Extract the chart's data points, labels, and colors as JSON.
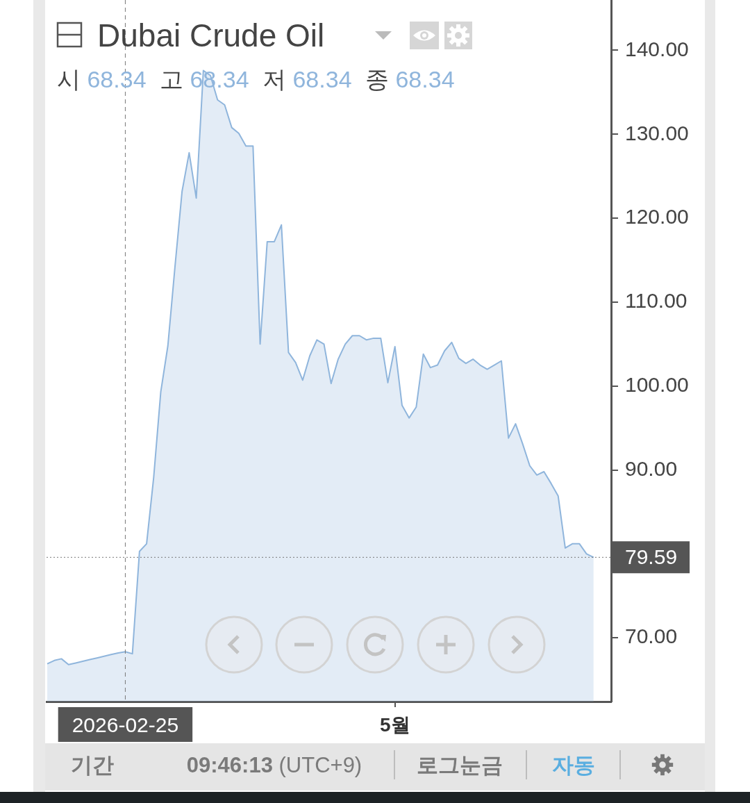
{
  "chart_data": {
    "type": "area",
    "title": "Dubai Crude Oil",
    "subtitle": "시 68.34 고 68.34 저 68.34 종 68.34",
    "categories": [
      null,
      null,
      null,
      null,
      null,
      null,
      null,
      null,
      null,
      null,
      null,
      "2026-02-25",
      null,
      null,
      null,
      null,
      null,
      null,
      null,
      null,
      null,
      null,
      null,
      null,
      null,
      null,
      null,
      null,
      null,
      null,
      null,
      null,
      null,
      null,
      null,
      null,
      null,
      null,
      null,
      null,
      null,
      null,
      null,
      null,
      null,
      null,
      null,
      null,
      null,
      "5월",
      null,
      null,
      null,
      null,
      null,
      null,
      null,
      null,
      null,
      null,
      null,
      null,
      null,
      null,
      null,
      null,
      null,
      null,
      null,
      null,
      null,
      null,
      null,
      null,
      null,
      null,
      null,
      null
    ],
    "series": [
      {
        "color": "#8fb5dc",
        "values": [
          66.9,
          67.3,
          67.5,
          66.8,
          67.0,
          67.2,
          67.4,
          67.6,
          67.8,
          68.0,
          68.2,
          68.34,
          68.1,
          80.3,
          81.2,
          89.1,
          99.3,
          104.8,
          114.2,
          123.2,
          127.8,
          122.4,
          137.6,
          137.0,
          134.1,
          133.5,
          130.8,
          130.1,
          128.6,
          128.6,
          105.0,
          117.2,
          117.2,
          119.2,
          104.0,
          102.8,
          100.7,
          103.6,
          105.5,
          105.0,
          100.3,
          103.2,
          105.0,
          106.0,
          106.0,
          105.5,
          105.7,
          105.7,
          100.4,
          104.7,
          97.7,
          96.2,
          97.5,
          103.8,
          102.2,
          102.5,
          104.2,
          105.2,
          103.3,
          102.7,
          103.2,
          102.5,
          102.0,
          102.5,
          103.0,
          93.8,
          95.5,
          93.1,
          90.5,
          89.4,
          89.8,
          88.4,
          86.9,
          80.7,
          81.2,
          81.2,
          80.0,
          79.59
        ]
      }
    ],
    "ylim": [
      62.4,
      146
    ],
    "yticks": [
      {
        "value": 70,
        "label": "70.00"
      },
      {
        "value": 90,
        "label": "90.00"
      },
      {
        "value": 100,
        "label": "100.00"
      },
      {
        "value": 110,
        "label": "110.00"
      },
      {
        "value": 120,
        "label": "120.00"
      },
      {
        "value": 130,
        "label": "130.00"
      },
      {
        "value": 140,
        "label": "140.00"
      }
    ],
    "ref_lines": [
      {
        "axis": "x",
        "value": "2026-02-25",
        "line_style": "dashed"
      },
      {
        "axis": "y",
        "value": 79.59,
        "label": "79.59",
        "line_style": "dotted"
      }
    ],
    "annotations": [
      "기간",
      "09:46:13 (UTC+9)",
      "로그눈금",
      "자동"
    ]
  }
}
